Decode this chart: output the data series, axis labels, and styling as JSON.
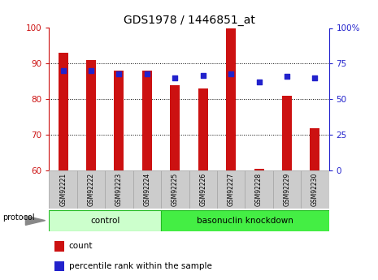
{
  "title": "GDS1978 / 1446851_at",
  "samples": [
    "GSM92221",
    "GSM92222",
    "GSM92223",
    "GSM92224",
    "GSM92225",
    "GSM92226",
    "GSM92227",
    "GSM92228",
    "GSM92229",
    "GSM92230"
  ],
  "bar_values": [
    93,
    91,
    88,
    88,
    84,
    83,
    100,
    60.5,
    81,
    72
  ],
  "dot_values_pct": [
    70,
    70,
    68,
    68,
    65,
    67,
    68,
    62,
    66,
    65
  ],
  "bar_color": "#cc1111",
  "dot_color": "#2222cc",
  "ylim_left": [
    60,
    100
  ],
  "ylim_right": [
    0,
    100
  ],
  "yticks_left": [
    60,
    70,
    80,
    90,
    100
  ],
  "yticks_right": [
    0,
    25,
    50,
    75,
    100
  ],
  "ytick_labels_right": [
    "0",
    "25",
    "50",
    "75",
    "100%"
  ],
  "groups": [
    {
      "label": "control",
      "start": 0,
      "end": 4,
      "color": "#ccffcc"
    },
    {
      "label": "basonuclin knockdown",
      "start": 4,
      "end": 10,
      "color": "#44ee44"
    }
  ],
  "protocol_label": "protocol",
  "legend_bar_label": "count",
  "legend_dot_label": "percentile rank within the sample",
  "bar_width": 0.35,
  "label_box_color": "#cccccc",
  "label_box_edge": "#aaaaaa"
}
